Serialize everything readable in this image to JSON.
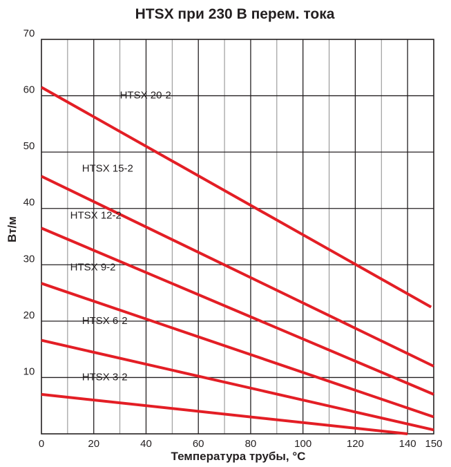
{
  "chart_data": {
    "type": "line",
    "title": "HTSX при 230 В перем. тока",
    "xlabel": "Температура трубы, °C",
    "ylabel": "Вт/м",
    "xlim": [
      0,
      150
    ],
    "ylim": [
      0,
      70
    ],
    "x_ticks": [
      "0",
      "20",
      "40",
      "60",
      "80",
      "100",
      "120",
      "140",
      "150"
    ],
    "y_ticks": [
      "10",
      "20",
      "30",
      "40",
      "50",
      "60",
      "70"
    ],
    "x_minor_step": 10,
    "y_major_step": 10,
    "grid": true,
    "line_color": "#e31e25",
    "series": [
      {
        "name": "HTSX 20-2",
        "x": [
          0,
          149
        ],
        "y": [
          61.5,
          22.5
        ]
      },
      {
        "name": "HTSX 15-2",
        "x": [
          0,
          150
        ],
        "y": [
          45.7,
          12.0
        ]
      },
      {
        "name": "HTSX 12-2",
        "x": [
          0,
          150
        ],
        "y": [
          36.5,
          7.0
        ]
      },
      {
        "name": "HTSX 9-2",
        "x": [
          0,
          150
        ],
        "y": [
          26.7,
          3.0
        ]
      },
      {
        "name": "HTSX 6-2",
        "x": [
          0,
          150
        ],
        "y": [
          16.6,
          0.7
        ]
      },
      {
        "name": "HTSX 3-2",
        "x": [
          0,
          140
        ],
        "y": [
          7.0,
          0
        ]
      }
    ]
  }
}
